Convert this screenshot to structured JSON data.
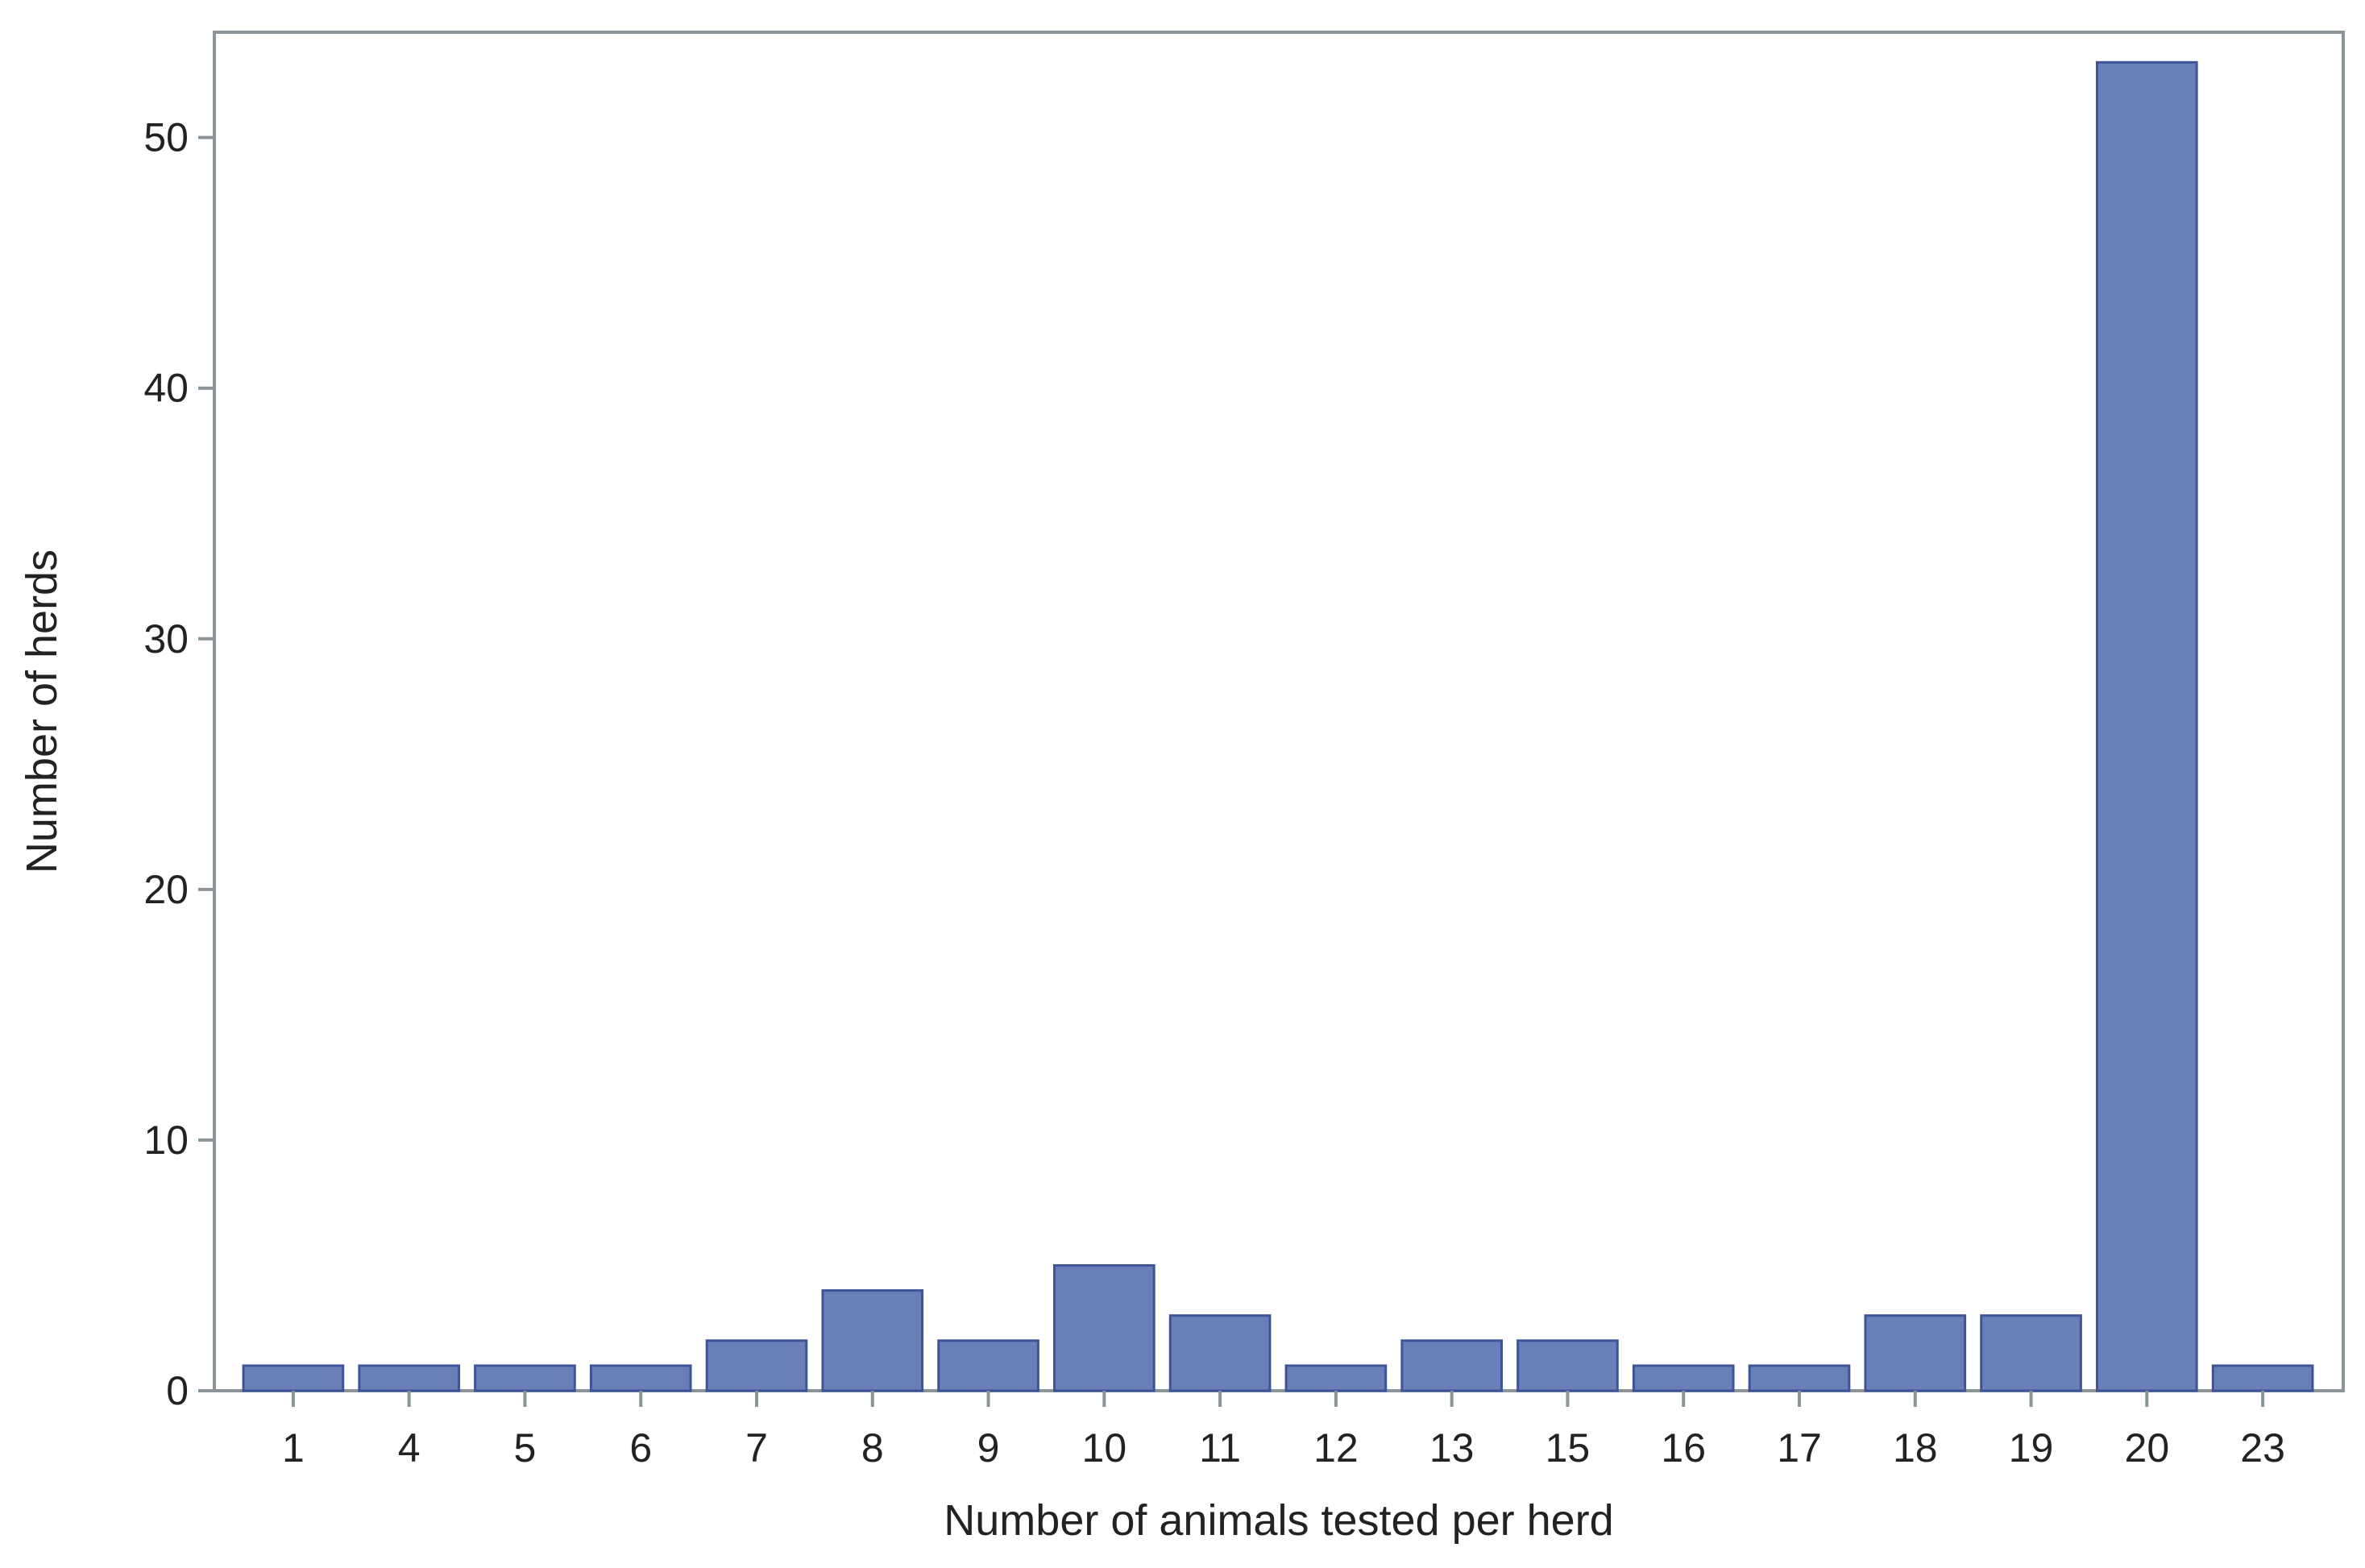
{
  "chart_data": {
    "type": "bar",
    "title": "",
    "xlabel": "Number of animals tested per herd",
    "ylabel": "Number of herds",
    "categories": [
      "1",
      "4",
      "5",
      "6",
      "7",
      "8",
      "9",
      "10",
      "11",
      "12",
      "13",
      "15",
      "16",
      "17",
      "18",
      "19",
      "20",
      "23"
    ],
    "values": [
      1,
      1,
      1,
      1,
      2,
      4,
      2,
      5,
      3,
      1,
      2,
      2,
      1,
      1,
      3,
      3,
      53,
      1
    ],
    "ylim": [
      0,
      54.2
    ],
    "yticks": [
      0,
      10,
      20,
      30,
      40,
      50
    ],
    "grid": false,
    "legend": "none",
    "colors": {
      "bar_fill": "#6a7fb7",
      "bar_stroke": "#3f5498",
      "axis": "#8a9499"
    }
  }
}
